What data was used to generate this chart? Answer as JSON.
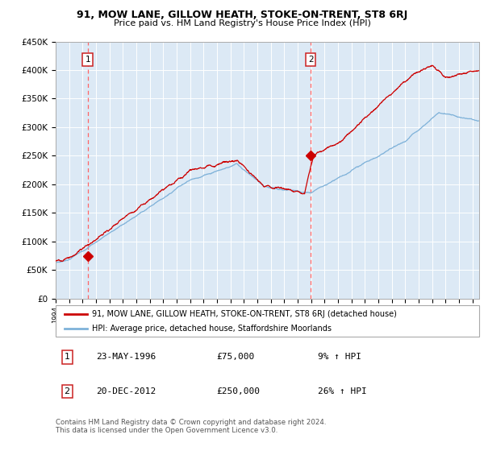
{
  "title": "91, MOW LANE, GILLOW HEATH, STOKE-ON-TRENT, ST8 6RJ",
  "subtitle": "Price paid vs. HM Land Registry's House Price Index (HPI)",
  "legend_line1": "91, MOW LANE, GILLOW HEATH, STOKE-ON-TRENT, ST8 6RJ (detached house)",
  "legend_line2": "HPI: Average price, detached house, Staffordshire Moorlands",
  "marker1_date": "23-MAY-1996",
  "marker1_price": "£75,000",
  "marker1_hpi": "9% ↑ HPI",
  "marker1_year": 1996.38,
  "marker1_value": 75000,
  "marker2_date": "20-DEC-2012",
  "marker2_price": "£250,000",
  "marker2_hpi": "26% ↑ HPI",
  "marker2_year": 2012.97,
  "marker2_value": 250000,
  "ylim": [
    0,
    450000
  ],
  "xlim_start": 1994.0,
  "xlim_end": 2025.5,
  "bg_color": "#dce9f5",
  "grid_color": "#ffffff",
  "red_line_color": "#cc0000",
  "blue_line_color": "#7fb2d9",
  "marker_color": "#cc0000",
  "vline1_color": "#ff6666",
  "vline2_color": "#ff6666",
  "footer": "Contains HM Land Registry data © Crown copyright and database right 2024.\nThis data is licensed under the Open Government Licence v3.0."
}
